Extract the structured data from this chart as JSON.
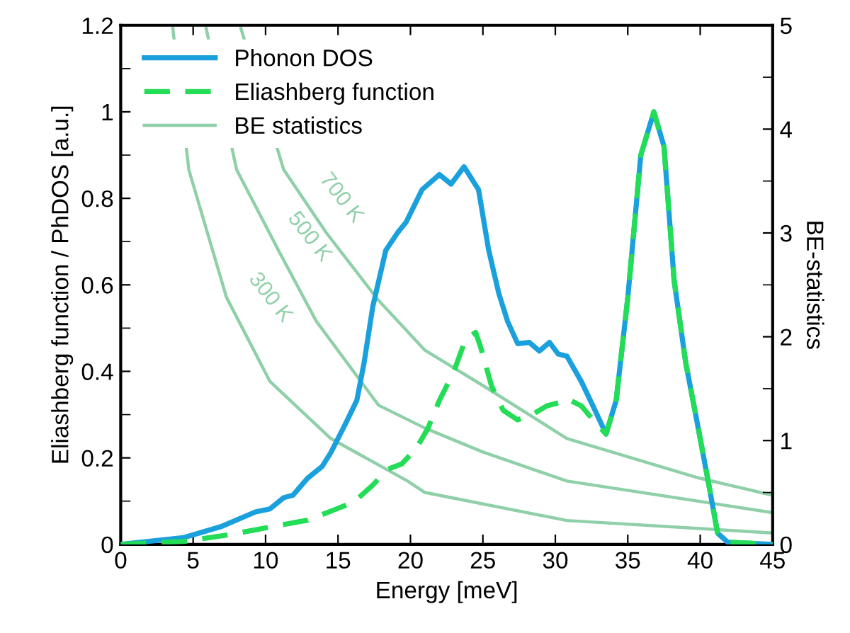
{
  "chart_data": {
    "type": "line",
    "xlabel": "Energy [meV]",
    "ylabel": "Eliashberg function / PhDOS [a.u.]",
    "y2label": "BE-statistics",
    "xlim": [
      0,
      45
    ],
    "xticks": [
      0,
      5,
      10,
      15,
      20,
      25,
      30,
      35,
      40,
      45
    ],
    "ylim": [
      0,
      1.2
    ],
    "yticks": [
      0,
      0.2,
      0.4,
      0.6,
      0.8,
      1,
      1.2
    ],
    "y2lim": [
      0,
      5
    ],
    "y2ticks": [
      0,
      1,
      2,
      3,
      4,
      5
    ],
    "grid": false,
    "legend": "top left",
    "series": [
      {
        "name": "Phonon DOS",
        "color": "#1aa0dc",
        "line_style": "solid",
        "x": [
          0,
          4.4,
          7.0,
          9.3,
          10.3,
          11.25,
          11.9,
          12.9,
          13.9,
          14.5,
          15.5,
          16.3,
          16.8,
          17.4,
          18.3,
          19.1,
          19.7,
          20.8,
          22.0,
          22.8,
          23.7,
          24.7,
          25.4,
          26.1,
          26.7,
          27.4,
          28.2,
          28.9,
          29.6,
          30.2,
          30.8,
          31.8,
          32.6,
          33.5,
          34.2,
          35.0,
          35.9,
          36.8,
          37.5,
          38.2,
          39.0,
          39.8,
          40.6,
          41.2,
          41.9,
          45
        ],
        "values": [
          0,
          0.016,
          0.042,
          0.075,
          0.082,
          0.108,
          0.114,
          0.153,
          0.18,
          0.212,
          0.278,
          0.333,
          0.42,
          0.55,
          0.68,
          0.72,
          0.745,
          0.82,
          0.855,
          0.833,
          0.873,
          0.82,
          0.68,
          0.58,
          0.516,
          0.464,
          0.467,
          0.447,
          0.467,
          0.44,
          0.435,
          0.376,
          0.32,
          0.255,
          0.333,
          0.57,
          0.9,
          1.0,
          0.92,
          0.61,
          0.42,
          0.28,
          0.137,
          0.026,
          0.005,
          0
        ]
      },
      {
        "name": "Eliashberg function",
        "color": "#22dd55",
        "line_style": "dashed",
        "x": [
          0,
          4.4,
          7.6,
          10.3,
          12.9,
          14.9,
          16.1,
          17.4,
          18.4,
          19.4,
          20.4,
          21.2,
          22.0,
          23.0,
          23.8,
          24.5,
          24.9,
          25.6,
          26.4,
          27.4,
          28.4,
          29.4,
          30.2,
          30.8,
          31.8,
          32.6,
          33.5,
          34.2,
          35.0,
          35.9,
          36.8,
          37.5,
          38.2,
          39.0,
          39.8,
          40.6,
          41.2,
          41.9,
          45
        ],
        "values": [
          0,
          0.007,
          0.023,
          0.04,
          0.056,
          0.082,
          0.098,
          0.137,
          0.173,
          0.186,
          0.222,
          0.268,
          0.333,
          0.4,
          0.474,
          0.49,
          0.45,
          0.366,
          0.31,
          0.288,
          0.3,
          0.32,
          0.327,
          0.337,
          0.32,
          0.288,
          0.255,
          0.333,
          0.57,
          0.9,
          1.0,
          0.92,
          0.61,
          0.42,
          0.28,
          0.137,
          0.026,
          0.005,
          0
        ]
      },
      {
        "name": "BE statistics",
        "color": "#8fd0a8",
        "line_style": "solid",
        "axis": "y2",
        "x": [
          3.6,
          4.7,
          7.3,
          10.3,
          14.5,
          19.8,
          21.0,
          30.8,
          45
        ],
        "values": [
          4.97,
          3.61,
          2.38,
          1.57,
          1.02,
          0.61,
          0.5,
          0.23,
          0.11
        ]
      },
      {
        "color": "#8fd0a8",
        "line_style": "solid",
        "axis": "y2",
        "x": [
          5.9,
          8.0,
          10.9,
          13.5,
          17.8,
          21.0,
          25.0,
          30.8,
          44.8
        ],
        "values": [
          4.97,
          3.61,
          2.83,
          2.15,
          1.34,
          1.12,
          0.89,
          0.61,
          0.31
        ]
      },
      {
        "color": "#8fd0a8",
        "line_style": "solid",
        "axis": "y2",
        "x": [
          8.3,
          11.25,
          14.2,
          17.8,
          21.0,
          25.0,
          30.8,
          39.9,
          44.8
        ],
        "values": [
          4.97,
          3.61,
          3.0,
          2.35,
          1.87,
          1.53,
          1.02,
          0.64,
          0.48
        ]
      }
    ],
    "annotations": [
      "700 K",
      "500 K",
      "300 K"
    ]
  }
}
